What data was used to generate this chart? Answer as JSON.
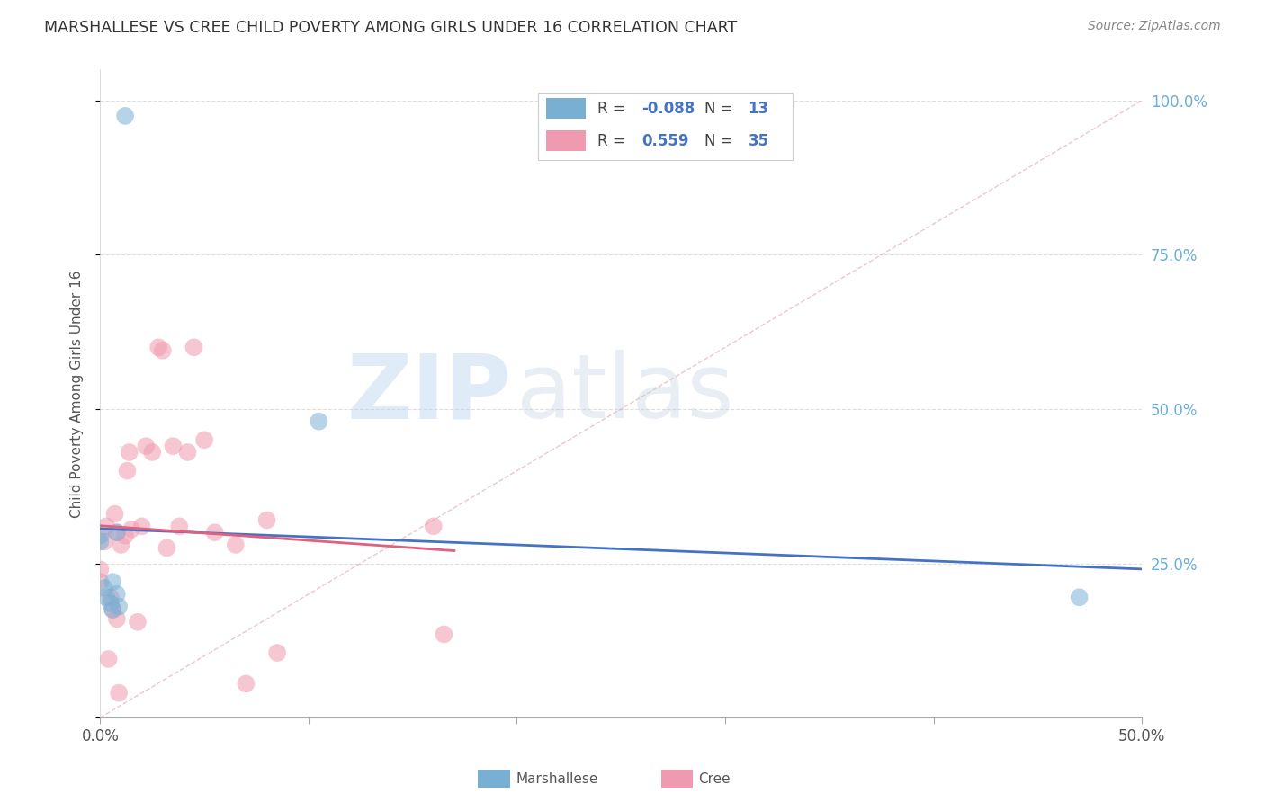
{
  "title": "MARSHALLESE VS CREE CHILD POVERTY AMONG GIRLS UNDER 16 CORRELATION CHART",
  "source": "Source: ZipAtlas.com",
  "ylabel": "Child Poverty Among Girls Under 16",
  "xlim": [
    0.0,
    0.5
  ],
  "ylim": [
    0.0,
    1.05
  ],
  "xtick_vals": [
    0.0,
    0.1,
    0.2,
    0.3,
    0.4,
    0.5
  ],
  "xtick_labels_sparse": {
    "0": "0.0%",
    "5": "50.0%"
  },
  "ytick_vals": [
    0.0,
    0.25,
    0.5,
    0.75,
    1.0
  ],
  "ytick_labels_right": [
    "",
    "25.0%",
    "50.0%",
    "75.0%",
    "100.0%"
  ],
  "watermark_zip": "ZIP",
  "watermark_atlas": "atlas",
  "legend_entries": [
    {
      "label": "Marshallese",
      "color": "#a8c8e8",
      "R": "-0.088",
      "N": "13"
    },
    {
      "label": "Cree",
      "color": "#f4b8c8",
      "R": "0.559",
      "N": "35"
    }
  ],
  "marshallese_x": [
    0.0,
    0.0,
    0.002,
    0.003,
    0.005,
    0.006,
    0.006,
    0.008,
    0.008,
    0.009,
    0.012,
    0.105,
    0.47
  ],
  "marshallese_y": [
    0.285,
    0.295,
    0.21,
    0.195,
    0.185,
    0.175,
    0.22,
    0.2,
    0.3,
    0.18,
    0.975,
    0.48,
    0.195
  ],
  "cree_x": [
    0.0,
    0.0,
    0.002,
    0.003,
    0.004,
    0.005,
    0.006,
    0.007,
    0.008,
    0.008,
    0.009,
    0.01,
    0.012,
    0.013,
    0.014,
    0.015,
    0.018,
    0.02,
    0.022,
    0.025,
    0.028,
    0.03,
    0.032,
    0.035,
    0.038,
    0.042,
    0.045,
    0.05,
    0.055,
    0.065,
    0.07,
    0.08,
    0.085,
    0.16,
    0.165
  ],
  "cree_y": [
    0.22,
    0.24,
    0.285,
    0.31,
    0.095,
    0.195,
    0.175,
    0.33,
    0.3,
    0.16,
    0.04,
    0.28,
    0.295,
    0.4,
    0.43,
    0.305,
    0.155,
    0.31,
    0.44,
    0.43,
    0.6,
    0.595,
    0.275,
    0.44,
    0.31,
    0.43,
    0.6,
    0.45,
    0.3,
    0.28,
    0.055,
    0.32,
    0.105,
    0.31,
    0.135
  ],
  "dot_color_marshallese": "#7aafd4",
  "dot_edge_marshallese": "#5590c0",
  "dot_color_cree": "#f09ab0",
  "dot_edge_cree": "#d07090",
  "line_color_marshallese": "#4472c4",
  "line_color_cree": "#e06080",
  "diag_color": "#cccccc",
  "grid_color": "#dddddd",
  "title_color": "#333333",
  "source_color": "#888888",
  "right_tick_color": "#6baed6",
  "background_color": "#ffffff"
}
